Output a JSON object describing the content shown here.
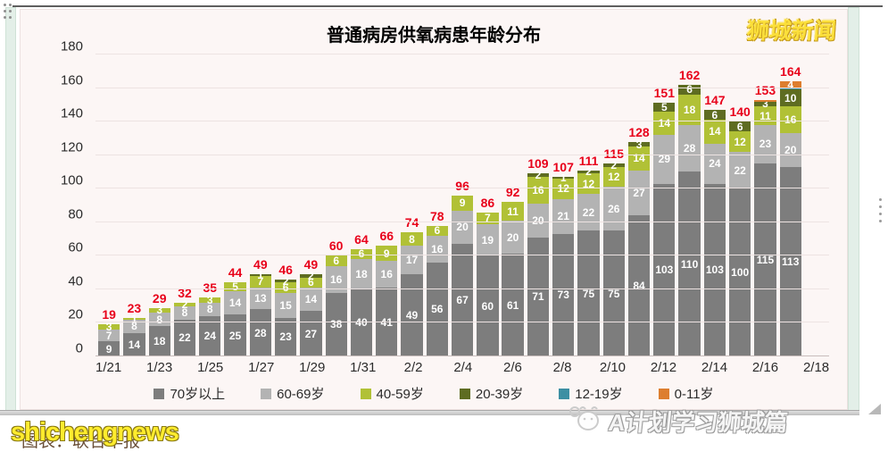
{
  "window": {
    "logo": "狮城新闻",
    "source_text": "图表：联合早报",
    "watermark": "shichengnews",
    "footer_brand": "A计划学习狮城篇"
  },
  "chart_data": {
    "type": "bar",
    "stacked": true,
    "title": "普通病房供氧病患年龄分布",
    "ylim": [
      0,
      180
    ],
    "ytick_step": 20,
    "grid": "horizontal",
    "legend_position": "bottom",
    "total_label_color": "#e8001a",
    "categories": [
      "1/21",
      "1/22",
      "1/23",
      "1/24",
      "1/25",
      "1/26",
      "1/27",
      "1/28",
      "1/29",
      "1/30",
      "1/31",
      "2/1",
      "2/2",
      "2/3",
      "2/4",
      "2/5",
      "2/6",
      "2/7",
      "2/8",
      "2/9",
      "2/10",
      "2/11",
      "2/12",
      "2/13",
      "2/14",
      "2/15",
      "2/16",
      "2/17"
    ],
    "x_tick_labels": [
      "1/21",
      "1/23",
      "1/25",
      "1/27",
      "1/29",
      "1/31",
      "2/2",
      "2/4",
      "2/6",
      "2/8",
      "2/10",
      "2/12",
      "2/14",
      "2/16",
      "2/18"
    ],
    "x_slots": 29,
    "series": [
      {
        "name": "70岁以上",
        "color": "#7d7d7d",
        "values": [
          9,
          14,
          18,
          22,
          24,
          25,
          28,
          23,
          27,
          38,
          40,
          41,
          49,
          56,
          67,
          60,
          61,
          71,
          73,
          75,
          75,
          84,
          103,
          110,
          103,
          100,
          115,
          113
        ]
      },
      {
        "name": "60-69岁",
        "color": "#b3b3b3",
        "values": [
          7,
          8,
          8,
          8,
          8,
          14,
          13,
          15,
          14,
          16,
          18,
          16,
          17,
          16,
          20,
          19,
          20,
          20,
          21,
          22,
          26,
          27,
          29,
          28,
          24,
          22,
          23,
          20
        ]
      },
      {
        "name": "40-59岁",
        "color": "#b1c136",
        "values": [
          3,
          1,
          3,
          2,
          3,
          5,
          7,
          6,
          6,
          6,
          6,
          9,
          8,
          6,
          9,
          7,
          11,
          16,
          12,
          12,
          12,
          14,
          14,
          18,
          14,
          12,
          11,
          16
        ]
      },
      {
        "name": "20-39岁",
        "color": "#5e6c21",
        "values": [
          0,
          0,
          0,
          0,
          0,
          0,
          1,
          2,
          2,
          0,
          0,
          0,
          0,
          0,
          0,
          0,
          0,
          2,
          1,
          2,
          2,
          3,
          5,
          6,
          6,
          6,
          3,
          10
        ]
      },
      {
        "name": "12-19岁",
        "color": "#3d8fa3",
        "values": [
          0,
          0,
          0,
          0,
          0,
          0,
          0,
          0,
          0,
          0,
          0,
          0,
          0,
          0,
          0,
          0,
          0,
          0,
          0,
          0,
          0,
          0,
          0,
          0,
          0,
          0,
          0,
          1
        ]
      },
      {
        "name": "0-11岁",
        "color": "#dd7e2f",
        "values": [
          0,
          0,
          0,
          0,
          0,
          0,
          0,
          0,
          0,
          0,
          0,
          0,
          0,
          0,
          0,
          0,
          0,
          0,
          0,
          0,
          0,
          0,
          0,
          0,
          0,
          0,
          1,
          4
        ]
      }
    ],
    "totals": [
      19,
      23,
      29,
      32,
      35,
      44,
      49,
      46,
      49,
      60,
      64,
      66,
      74,
      78,
      96,
      86,
      92,
      109,
      107,
      111,
      115,
      128,
      151,
      162,
      147,
      140,
      153,
      164
    ],
    "hidden_value_labels": [
      [
        4,
        27
      ],
      [
        5,
        26
      ]
    ]
  }
}
